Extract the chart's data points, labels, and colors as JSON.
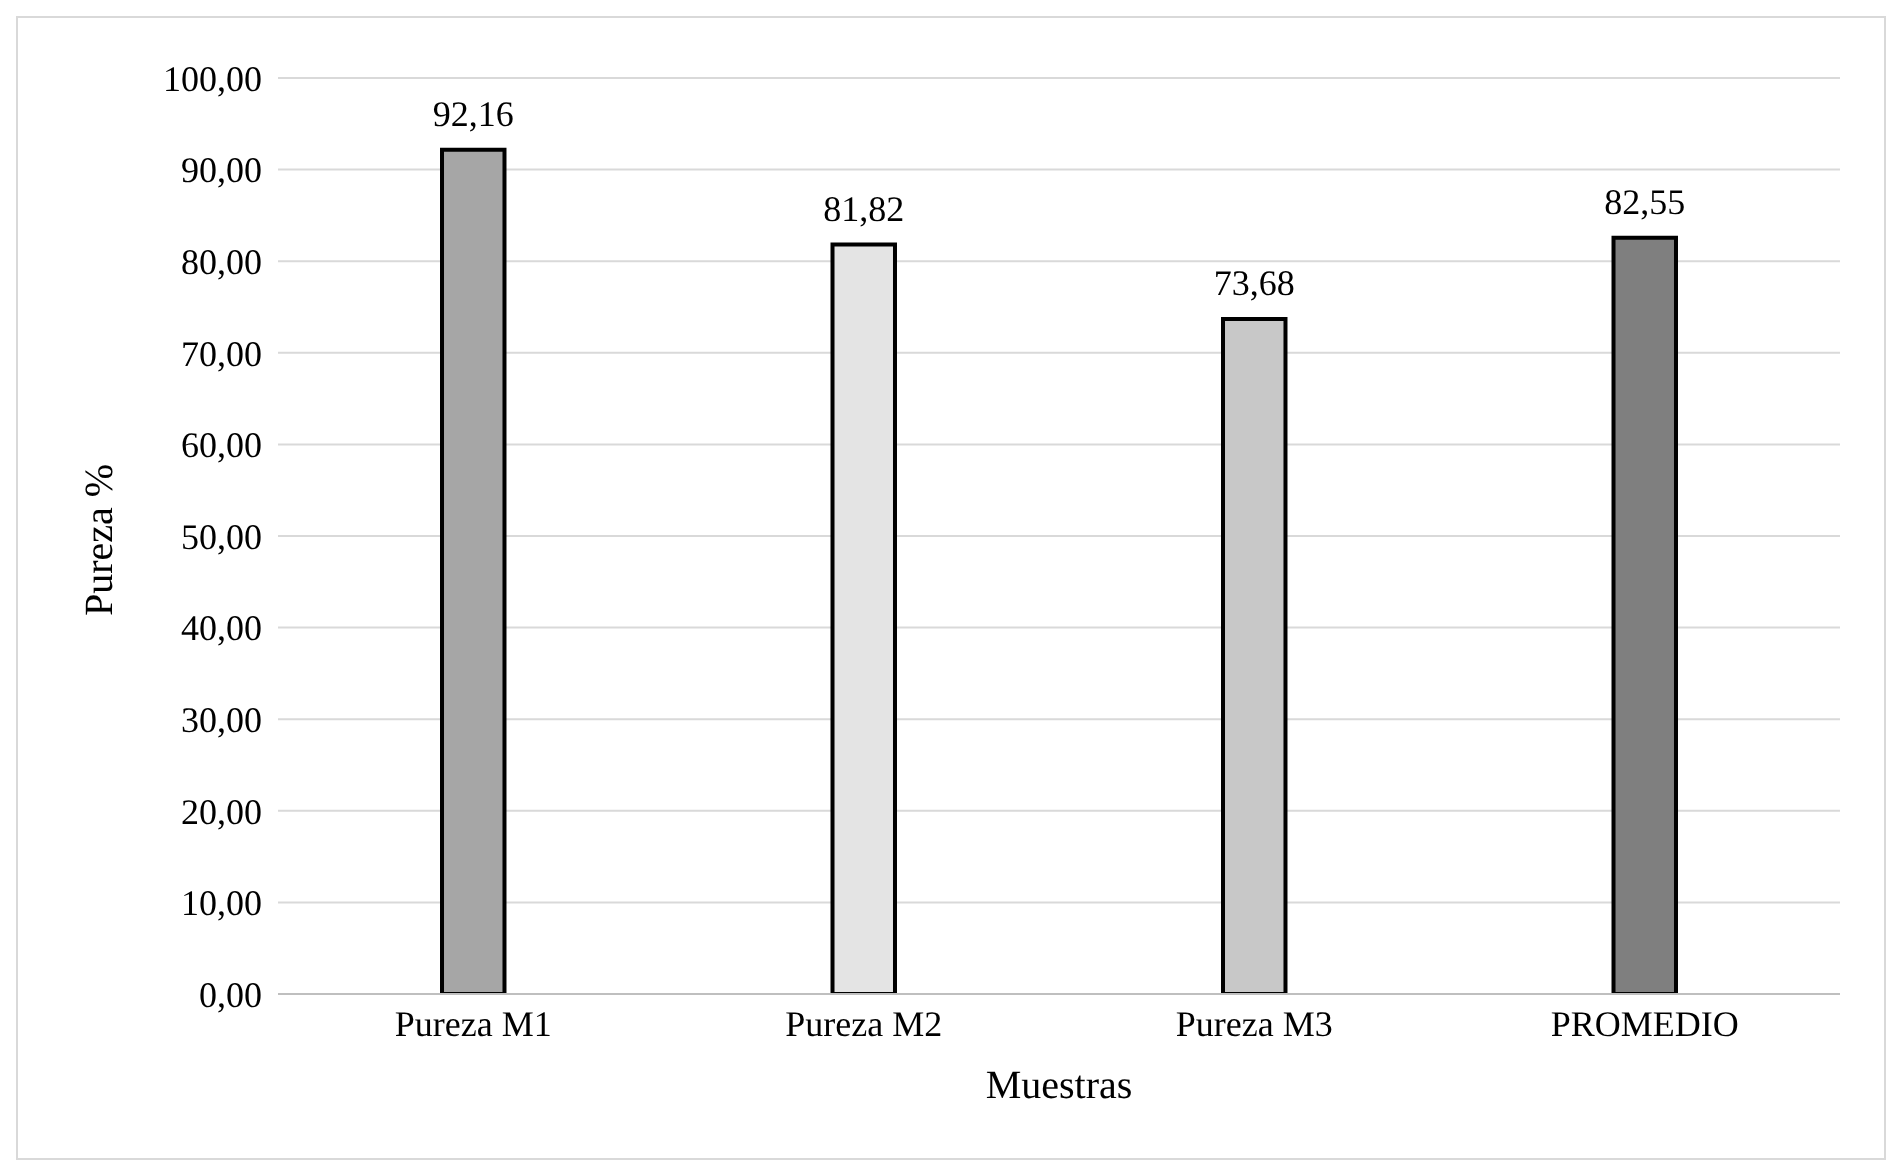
{
  "chart_data": {
    "type": "bar",
    "xlabel": "Muestras",
    "ylabel": "Pureza %",
    "categories": [
      "Pureza M1",
      "Pureza M2",
      "Pureza M3",
      "PROMEDIO"
    ],
    "values": [
      92.16,
      81.82,
      73.68,
      82.55
    ],
    "colors": [
      "#a6a6a6",
      "#e4e4e4",
      "#c8c8c8",
      "#7f7f7f"
    ],
    "value_labels": [
      "92,16",
      "81,82",
      "73,68",
      "82,55"
    ],
    "ylim": [
      0,
      100
    ],
    "yticks": [
      {
        "value": 0,
        "label": "0,00"
      },
      {
        "value": 10,
        "label": "10,00"
      },
      {
        "value": 20,
        "label": "20,00"
      },
      {
        "value": 30,
        "label": "30,00"
      },
      {
        "value": 40,
        "label": "40,00"
      },
      {
        "value": 50,
        "label": "50,00"
      },
      {
        "value": 60,
        "label": "60,00"
      },
      {
        "value": 70,
        "label": "70,00"
      },
      {
        "value": 80,
        "label": "80,00"
      },
      {
        "value": 90,
        "label": "90,00"
      },
      {
        "value": 100,
        "label": "100,00"
      }
    ],
    "grid": "y",
    "legend": false
  }
}
